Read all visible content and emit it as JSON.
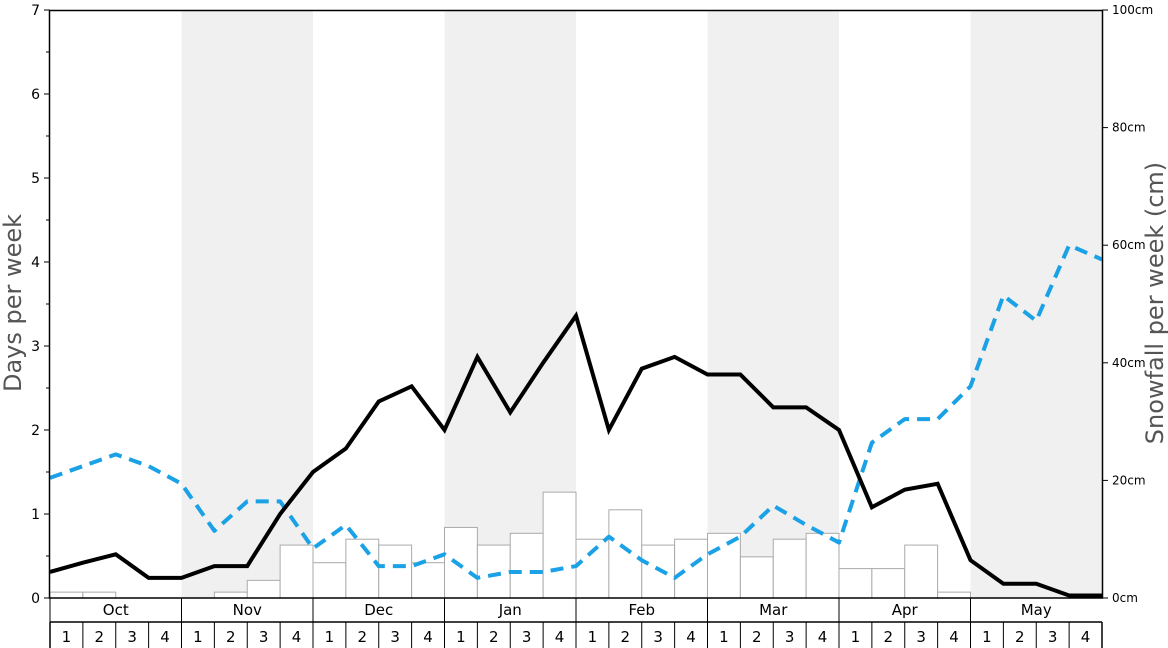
{
  "chart_data": {
    "type": "line",
    "ylabel_left": "Days per week",
    "ylabel_right": "Snowfall per week (cm)",
    "ylim_left": [
      0,
      7
    ],
    "ylim_right": [
      0,
      100
    ],
    "left_ticks": [
      "0",
      "1",
      "2",
      "3",
      "4",
      "5",
      "6",
      "7"
    ],
    "right_ticks": [
      "0cm",
      "20cm",
      "40cm",
      "60cm",
      "80cm",
      "100cm"
    ],
    "months": [
      "Oct",
      "Nov",
      "Dec",
      "Jan",
      "Feb",
      "Mar",
      "Apr",
      "May"
    ],
    "weeks": [
      "1",
      "2",
      "3",
      "4"
    ],
    "shaded_months": [
      false,
      true,
      false,
      true,
      false,
      true,
      false,
      true
    ],
    "background_shade_color": "#f0f0f0",
    "snowfall_bar_color": "#ffffff",
    "snowfall_bar_border": "#aaaaaa",
    "series": [
      {
        "axis": "left",
        "style": "solid",
        "color": "#000000",
        "values": [
          0.31,
          0.42,
          0.52,
          0.24,
          0.24,
          0.38,
          0.38,
          1.0,
          1.5,
          1.78,
          2.34,
          2.52,
          2.0,
          2.87,
          2.21,
          2.8,
          3.36,
          2.0,
          2.73,
          2.87,
          2.66,
          2.66,
          2.27,
          2.27,
          2.0,
          1.08,
          1.29,
          1.36,
          0.45,
          0.17,
          0.17,
          0.03,
          0.03
        ]
      },
      {
        "axis": "left",
        "style": "dashed",
        "color": "#1aa1e6",
        "values": [
          1.43,
          1.57,
          1.71,
          1.57,
          1.36,
          0.8,
          1.15,
          1.15,
          0.59,
          0.87,
          0.38,
          0.38,
          0.52,
          0.24,
          0.31,
          0.31,
          0.38,
          0.73,
          0.45,
          0.24,
          0.52,
          0.73,
          1.1,
          0.87,
          0.66,
          1.85,
          2.13,
          2.13,
          2.52,
          3.6,
          3.3,
          4.2,
          4.03
        ]
      },
      {
        "axis": "right",
        "style": "bars",
        "name": "Snowfall",
        "values": [
          1,
          1,
          0,
          0,
          0,
          1,
          3,
          9,
          6,
          10,
          9,
          6,
          12,
          9,
          11,
          18,
          10,
          15,
          9,
          10,
          11,
          7,
          10,
          11,
          5,
          5,
          9,
          1,
          0,
          0,
          0,
          0
        ]
      }
    ]
  }
}
